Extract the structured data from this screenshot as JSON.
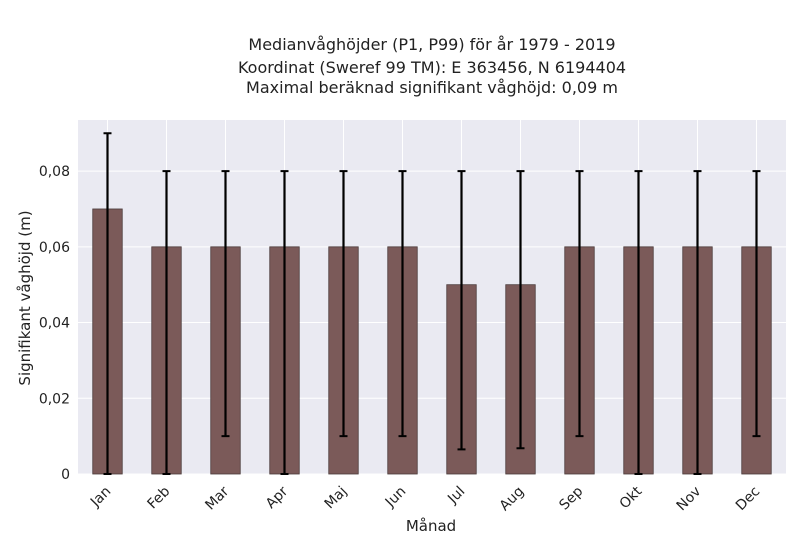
{
  "chart_data": {
    "type": "bar",
    "title": [
      "Medianvåghöjder (P1, P99) för år 1979 - 2019",
      "Koordinat (Sweref 99 TM): E 363456, N 6194404",
      "Maximal beräknad signifikant våghöjd: 0,09 m"
    ],
    "xlabel": "Månad",
    "ylabel": "Signifikant våghöjd (m)",
    "categories": [
      "Jan",
      "Feb",
      "Mar",
      "Apr",
      "Maj",
      "Jun",
      "Jul",
      "Aug",
      "Sep",
      "Okt",
      "Nov",
      "Dec"
    ],
    "values": [
      0.07,
      0.06,
      0.06,
      0.06,
      0.06,
      0.06,
      0.05,
      0.05,
      0.06,
      0.06,
      0.06,
      0.06
    ],
    "p1": [
      0.0,
      0.0,
      0.01,
      0.0,
      0.01,
      0.01,
      0.0065,
      0.0068,
      0.01,
      0.0,
      0.0,
      0.01
    ],
    "p99": [
      0.09,
      0.08,
      0.08,
      0.08,
      0.08,
      0.08,
      0.08,
      0.08,
      0.08,
      0.08,
      0.08,
      0.08
    ],
    "ylim": [
      0,
      0.0935
    ],
    "yticks": [
      0,
      0.02,
      0.04,
      0.06,
      0.08
    ],
    "ytick_labels": [
      "0",
      "0,02",
      "0,04",
      "0,06",
      "0,08"
    ],
    "grid": true,
    "colors": {
      "bar": "#7b5a59",
      "bar_edge": "#4a3a3a",
      "error": "#000000",
      "plot_bg": "#eaeaf2",
      "grid": "#ffffff"
    }
  }
}
